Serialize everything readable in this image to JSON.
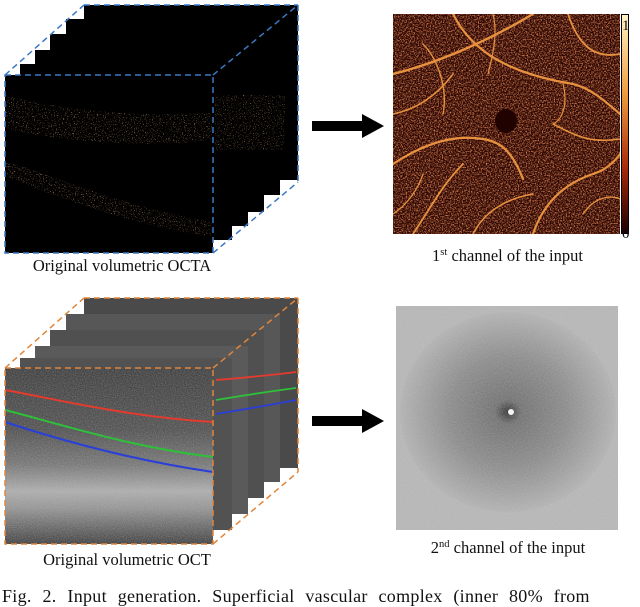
{
  "top_panel": {
    "left_caption": "Original volumetric OCTA",
    "right_caption_ordinal": "1",
    "right_caption_sup": "st",
    "right_caption_rest": " channel of the input",
    "colorbar_max": "1",
    "colorbar_min": "0"
  },
  "bottom_panel": {
    "left_caption": "Original volumetric OCT",
    "right_caption_ordinal": "2",
    "right_caption_sup": "nd",
    "right_caption_rest": " channel of the input"
  },
  "figure_caption": "Fig. 2. Input generation. Superficial vascular complex (inner 80% from",
  "colors": {
    "octa_dashed_border": "#3a78c2",
    "oct_dashed_border": "#e0853a",
    "layer_red": "#e53b2e",
    "layer_green": "#2fbf3a",
    "layer_blue": "#2a3fd8",
    "vessel": "#e8913e",
    "colorbar_top": "#fff3c8",
    "colorbar_bottom": "#1a0000"
  }
}
